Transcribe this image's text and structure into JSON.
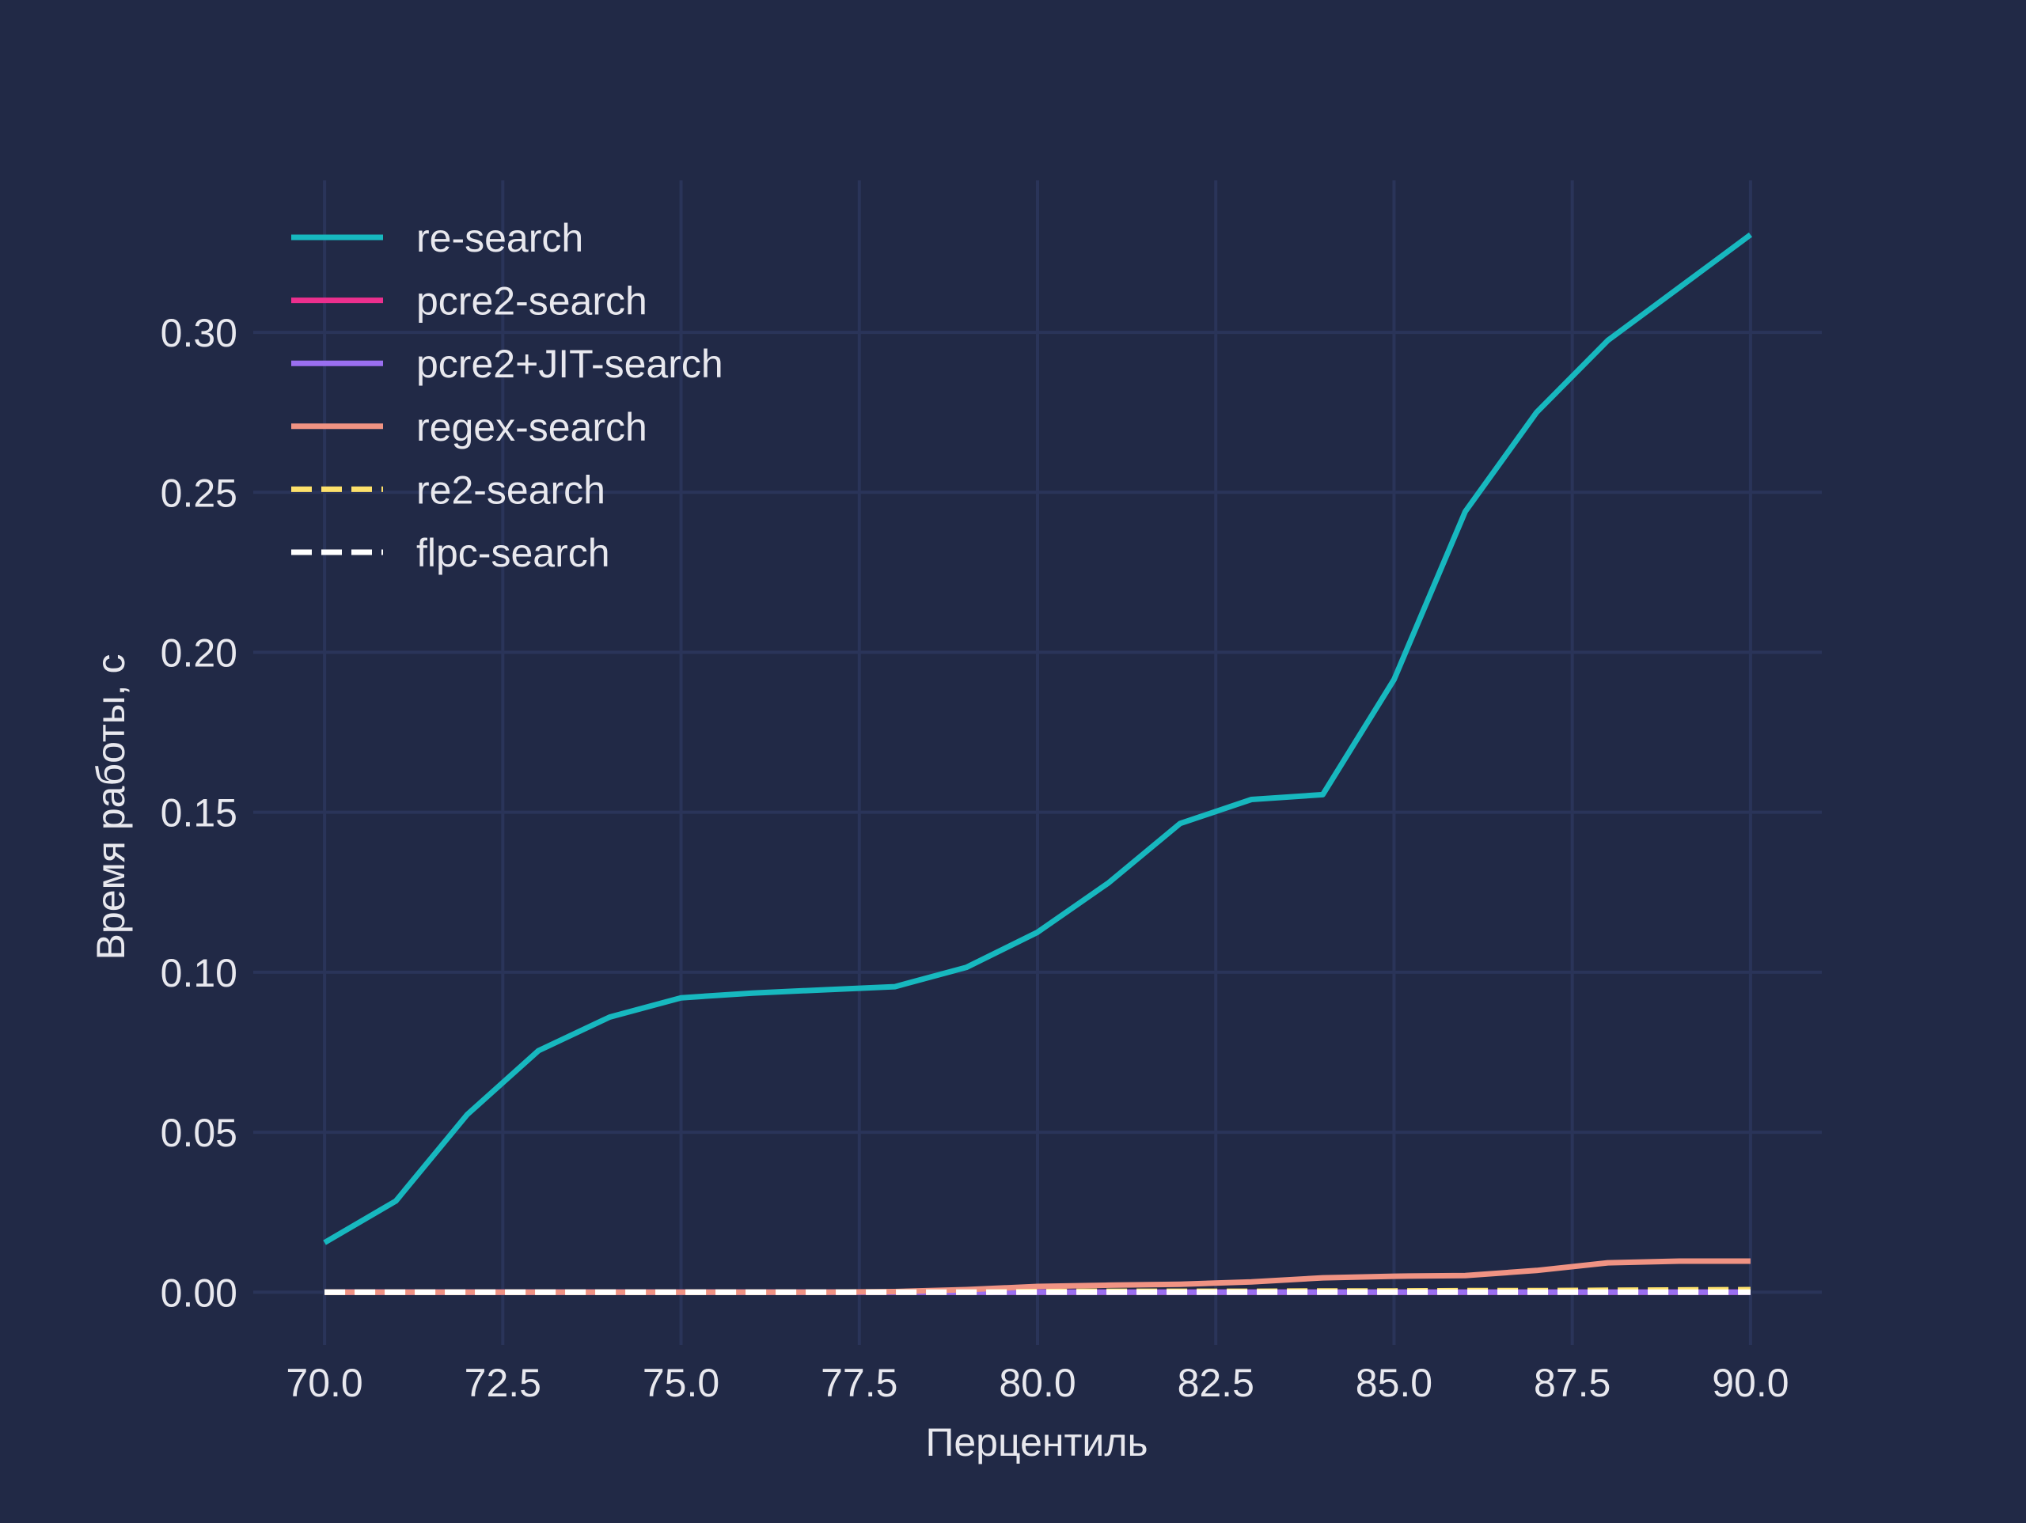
{
  "chart_data": {
    "type": "line",
    "title": "",
    "xlabel": "Перцентиль",
    "ylabel": "Время работы, с",
    "xlim": [
      69.0,
      91.0
    ],
    "ylim": [
      -0.0165,
      0.3475
    ],
    "xticks": [
      70.0,
      72.5,
      75.0,
      77.5,
      80.0,
      82.5,
      85.0,
      87.5,
      90.0
    ],
    "xtick_labels": [
      "70.0",
      "72.5",
      "75.0",
      "77.5",
      "80.0",
      "82.5",
      "85.0",
      "87.5",
      "90.0"
    ],
    "yticks": [
      0.0,
      0.05,
      0.1,
      0.15,
      0.2,
      0.25,
      0.3
    ],
    "ytick_labels": [
      "0.00",
      "0.05",
      "0.10",
      "0.15",
      "0.20",
      "0.25",
      "0.30"
    ],
    "grid": true,
    "legend_position": "top-left",
    "background_color": "#212946",
    "grid_color": "#2a3459",
    "text_color": "#e8e8ee",
    "x": [
      70,
      71,
      72,
      73,
      74,
      75,
      76,
      77,
      78,
      79,
      80,
      81,
      82,
      83,
      84,
      85,
      86,
      87,
      88,
      89,
      90
    ],
    "series": [
      {
        "name": "re-search",
        "color": "#17b8bf",
        "dash": "solid",
        "values": [
          0.0155,
          0.0285,
          0.0555,
          0.0755,
          0.086,
          0.092,
          0.0935,
          0.0945,
          0.0955,
          0.1015,
          0.1125,
          0.128,
          0.1465,
          0.154,
          0.1555,
          0.1915,
          0.244,
          0.275,
          0.2975,
          0.314,
          0.3305
        ]
      },
      {
        "name": "pcre2-search",
        "color": "#ec2f8e",
        "dash": "solid",
        "values": [
          0,
          0,
          0,
          0,
          0,
          0,
          0,
          0,
          0,
          0,
          0,
          0,
          0,
          0,
          0,
          0,
          0,
          0,
          0,
          0,
          0
        ]
      },
      {
        "name": "pcre2+JIT-search",
        "color": "#9a6ff0",
        "dash": "solid",
        "values": [
          0,
          0,
          0,
          0,
          0,
          0,
          0,
          0,
          0,
          0,
          0,
          0,
          0,
          0,
          0,
          0,
          0,
          0,
          0,
          0,
          0
        ]
      },
      {
        "name": "regex-search",
        "color": "#f09383",
        "dash": "solid",
        "values": [
          0,
          0,
          0,
          0,
          0,
          0,
          0,
          0,
          0.0002,
          0.0008,
          0.0018,
          0.0022,
          0.0025,
          0.0032,
          0.0045,
          0.005,
          0.0052,
          0.0068,
          0.0092,
          0.0097,
          0.0097
        ]
      },
      {
        "name": "re2-search",
        "color": "#fde06b",
        "dash": "dashed",
        "values": [
          0,
          0,
          0,
          0,
          0,
          0,
          0,
          0,
          0,
          0,
          0.0002,
          0.0003,
          0.0003,
          0.0003,
          0.0004,
          0.0004,
          0.0005,
          0.0005,
          0.0006,
          0.0007,
          0.0008
        ]
      },
      {
        "name": "flpc-search",
        "color": "#ffffff",
        "dash": "dashed",
        "values": [
          0,
          0,
          0,
          0,
          0,
          0,
          0,
          0,
          0,
          0,
          0,
          0,
          0,
          0,
          0,
          0,
          0,
          0,
          0,
          0,
          0
        ]
      }
    ]
  }
}
